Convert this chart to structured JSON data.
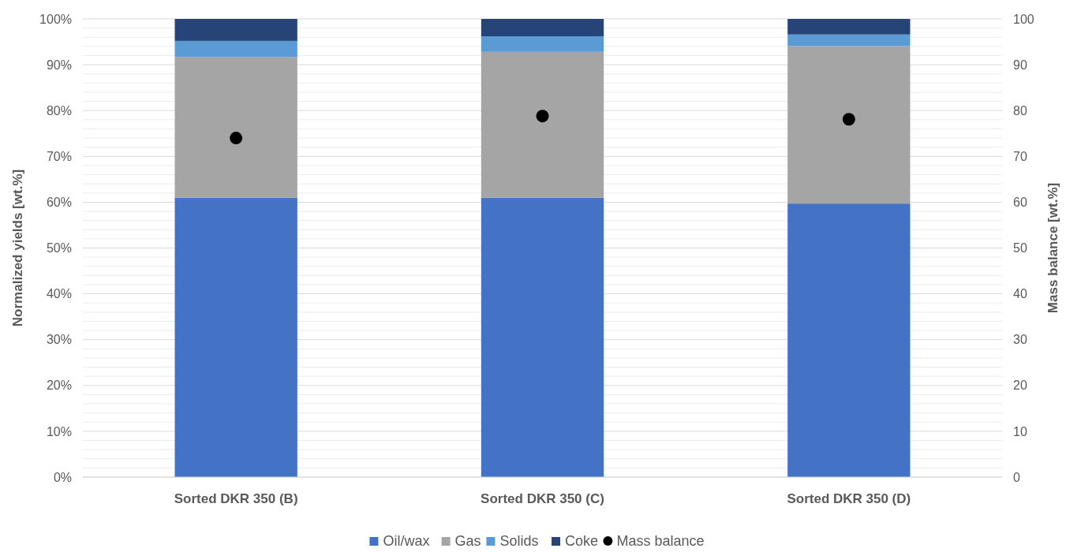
{
  "chart_data": {
    "type": "bar",
    "stacked": true,
    "categories": [
      "Sorted DKR 350 (B)",
      "Sorted DKR 350 (C)",
      "Sorted DKR 350 (D)"
    ],
    "ylabel": "Normalized yields [wt.%]",
    "y2label": "Mass balance [wt.%]",
    "series": [
      {
        "name": "Oil/wax",
        "color": "#4472c4",
        "values": [
          61,
          61,
          59.7
        ]
      },
      {
        "name": "Gas",
        "color": "#a5a5a5",
        "values": [
          30.7,
          31.8,
          34.4
        ]
      },
      {
        "name": "Solids",
        "color": "#5b9bd5",
        "values": [
          3.5,
          3.4,
          2.5
        ]
      },
      {
        "name": "Coke",
        "color": "#264478",
        "values": [
          4.8,
          3.8,
          3.4
        ]
      },
      {
        "name": "Mass balance",
        "type": "scatter",
        "axis": "y2",
        "marker": "circle",
        "color": "#000000",
        "x": [
          "Sorted DKR 350 (B)",
          "Sorted DKR 350 (C)",
          "Sorted DKR 350 (D)"
        ],
        "values": [
          74,
          78.8,
          78.1
        ]
      }
    ],
    "ylim": [
      0,
      100
    ],
    "yticks": [
      {
        "value": 0,
        "label": "0%"
      },
      {
        "value": 2,
        "label": null
      },
      {
        "value": 4,
        "label": null
      },
      {
        "value": 6,
        "label": null
      },
      {
        "value": 8,
        "label": null
      },
      {
        "value": 10,
        "label": "10%"
      },
      {
        "value": 12,
        "label": null
      },
      {
        "value": 14,
        "label": null
      },
      {
        "value": 16,
        "label": null
      },
      {
        "value": 18,
        "label": null
      },
      {
        "value": 20,
        "label": "20%"
      },
      {
        "value": 22,
        "label": null
      },
      {
        "value": 24,
        "label": null
      },
      {
        "value": 26,
        "label": null
      },
      {
        "value": 28,
        "label": null
      },
      {
        "value": 30,
        "label": "30%"
      },
      {
        "value": 32,
        "label": null
      },
      {
        "value": 34,
        "label": null
      },
      {
        "value": 36,
        "label": null
      },
      {
        "value": 38,
        "label": null
      },
      {
        "value": 40,
        "label": "40%"
      },
      {
        "value": 42,
        "label": null
      },
      {
        "value": 44,
        "label": null
      },
      {
        "value": 46,
        "label": null
      },
      {
        "value": 48,
        "label": null
      },
      {
        "value": 50,
        "label": "50%"
      },
      {
        "value": 52,
        "label": null
      },
      {
        "value": 54,
        "label": null
      },
      {
        "value": 56,
        "label": null
      },
      {
        "value": 58,
        "label": null
      },
      {
        "value": 60,
        "label": "60%"
      },
      {
        "value": 62,
        "label": null
      },
      {
        "value": 64,
        "label": null
      },
      {
        "value": 66,
        "label": null
      },
      {
        "value": 68,
        "label": null
      },
      {
        "value": 70,
        "label": "70%"
      },
      {
        "value": 72,
        "label": null
      },
      {
        "value": 74,
        "label": null
      },
      {
        "value": 76,
        "label": null
      },
      {
        "value": 78,
        "label": null
      },
      {
        "value": 80,
        "label": "80%"
      },
      {
        "value": 82,
        "label": null
      },
      {
        "value": 84,
        "label": null
      },
      {
        "value": 86,
        "label": null
      },
      {
        "value": 88,
        "label": null
      },
      {
        "value": 90,
        "label": "90%"
      },
      {
        "value": 92,
        "label": null
      },
      {
        "value": 94,
        "label": null
      },
      {
        "value": 96,
        "label": null
      },
      {
        "value": 98,
        "label": null
      },
      {
        "value": 100,
        "label": "100%"
      }
    ],
    "y2lim": [
      0,
      100
    ],
    "y2ticks": [
      0,
      10,
      20,
      30,
      40,
      50,
      60,
      70,
      80,
      90,
      100
    ],
    "grid": "y",
    "legend": "bottom"
  }
}
